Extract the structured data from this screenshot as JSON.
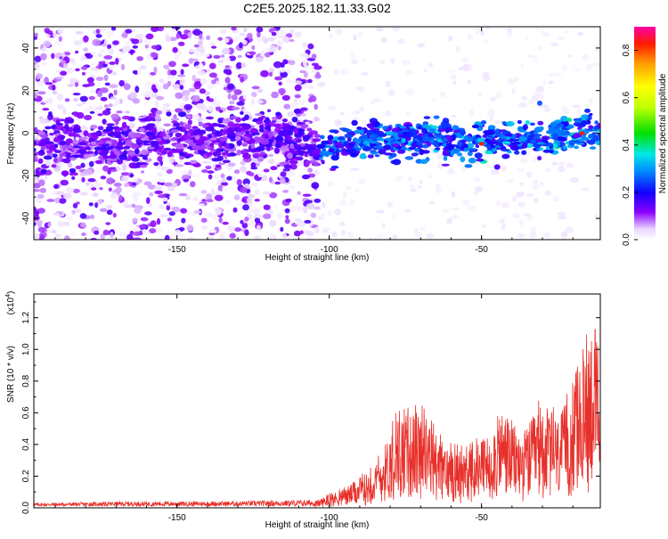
{
  "title": "C2E5.2025.182.11.33.G02",
  "chart_data": [
    {
      "type": "heatmap",
      "xlabel": "Height of straight line (km)",
      "ylabel": "Frequency (Hz)",
      "xlim": [
        -197,
        -11
      ],
      "ylim": [
        -50,
        50
      ],
      "xticks": [
        -150,
        -100,
        -50
      ],
      "yticks": [
        -40,
        -20,
        0,
        20,
        40
      ],
      "colorbar": {
        "label": "Normalized spectral amplitude",
        "range": [
          0.0,
          0.9
        ],
        "ticks": [
          "0.0",
          "0.2",
          "0.4",
          "0.6",
          "0.8"
        ]
      },
      "signal_band": [
        {
          "x": -185,
          "y": -5
        },
        {
          "x": -160,
          "y": -4
        },
        {
          "x": -120,
          "y": -3
        },
        {
          "x": -100,
          "y": -8
        },
        {
          "x": -90,
          "y": -4
        },
        {
          "x": -75,
          "y": -2
        },
        {
          "x": -50,
          "y": -4
        },
        {
          "x": -30,
          "y": -3
        },
        {
          "x": -20,
          "y": -1
        },
        {
          "x": -12,
          "y": 0
        }
      ],
      "peaks": [
        {
          "x": -50,
          "y": -5,
          "value": 0.9
        },
        {
          "x": -17,
          "y": 0,
          "value": 0.9
        }
      ]
    },
    {
      "type": "line",
      "xlabel": "Height of straight line (km)",
      "ylabel": "SNR (10 * v/v)",
      "exponent_label": "(x10",
      "exponent_sup": "4",
      "exponent_close": ")",
      "xlim": [
        -197,
        -11
      ],
      "ylim": [
        0,
        1.35
      ],
      "xticks": [
        -150,
        -100,
        -50
      ],
      "yticks": [
        "0.0",
        "0.2",
        "0.4",
        "0.6",
        "0.8",
        "1.0",
        "1.2"
      ],
      "series": [
        {
          "color": "#e8302a",
          "envelope": [
            {
              "x": -197,
              "y": 0.02
            },
            {
              "x": -165,
              "y": 0.03
            },
            {
              "x": -140,
              "y": 0.03
            },
            {
              "x": -105,
              "y": 0.04
            },
            {
              "x": -95,
              "y": 0.12
            },
            {
              "x": -85,
              "y": 0.25
            },
            {
              "x": -78,
              "y": 0.55
            },
            {
              "x": -70,
              "y": 0.6
            },
            {
              "x": -62,
              "y": 0.38
            },
            {
              "x": -55,
              "y": 0.35
            },
            {
              "x": -48,
              "y": 0.45
            },
            {
              "x": -43,
              "y": 0.62
            },
            {
              "x": -37,
              "y": 0.45
            },
            {
              "x": -30,
              "y": 0.65
            },
            {
              "x": -25,
              "y": 0.55
            },
            {
              "x": -20,
              "y": 0.72
            },
            {
              "x": -16,
              "y": 0.95
            },
            {
              "x": -13,
              "y": 1.25
            },
            {
              "x": -11,
              "y": 0.7
            }
          ]
        }
      ]
    }
  ]
}
